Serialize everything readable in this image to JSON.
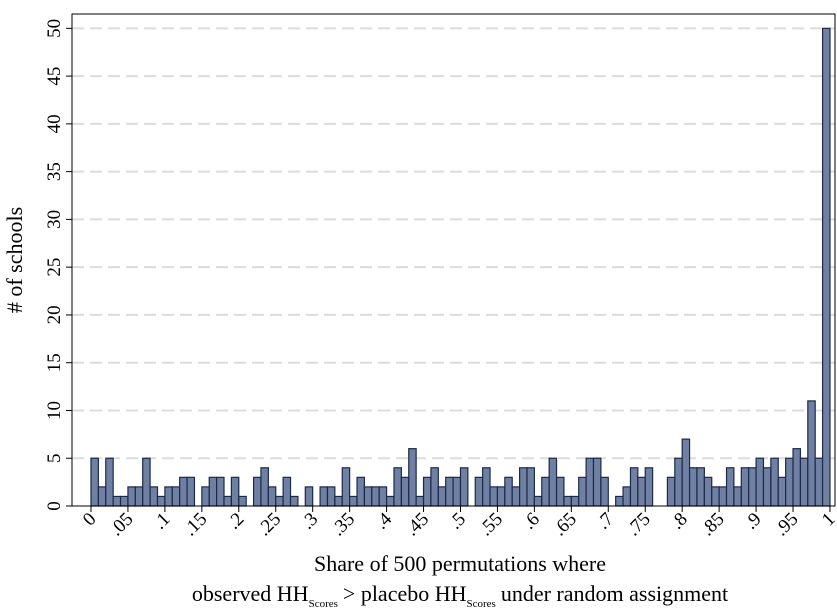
{
  "chart_data": {
    "type": "histogram",
    "ylabel": "# of schools",
    "xlabel": "Share of 500 permutations where",
    "xlabel_line2": [
      "observed HH",
      "Scores",
      "> placebo HH",
      "Scores",
      "under random assignment"
    ],
    "bins": [
      0,
      0.01,
      0.02,
      0.03,
      0.04,
      0.05,
      0.06,
      0.07,
      0.08,
      0.09,
      0.1,
      0.11,
      0.12,
      0.13,
      0.14,
      0.15,
      0.16,
      0.17,
      0.18,
      0.19,
      0.2,
      0.21,
      0.22,
      0.23,
      0.24,
      0.25,
      0.26,
      0.27,
      0.28,
      0.29,
      0.3,
      0.31,
      0.32,
      0.33,
      0.34,
      0.35,
      0.36,
      0.37,
      0.38,
      0.39,
      0.4,
      0.41,
      0.42,
      0.43,
      0.44,
      0.45,
      0.46,
      0.47,
      0.48,
      0.49,
      0.5,
      0.51,
      0.52,
      0.53,
      0.54,
      0.55,
      0.56,
      0.57,
      0.58,
      0.59,
      0.6,
      0.61,
      0.62,
      0.63,
      0.64,
      0.65,
      0.66,
      0.67,
      0.68,
      0.69,
      0.7,
      0.71,
      0.72,
      0.73,
      0.74,
      0.75,
      0.76,
      0.77,
      0.78,
      0.79,
      0.8,
      0.81,
      0.82,
      0.83,
      0.84,
      0.85,
      0.86,
      0.87,
      0.88,
      0.89,
      0.9,
      0.91,
      0.92,
      0.93,
      0.94,
      0.95,
      0.96,
      0.97,
      0.98,
      0.99,
      1
    ],
    "values": [
      5,
      2,
      5,
      1,
      1,
      2,
      2,
      5,
      2,
      1,
      2,
      2,
      3,
      3,
      0,
      2,
      3,
      3,
      1,
      3,
      1,
      0,
      3,
      4,
      2,
      1,
      3,
      1,
      0,
      2,
      0,
      2,
      2,
      1,
      4,
      1,
      3,
      2,
      2,
      2,
      1,
      4,
      3,
      6,
      1,
      3,
      4,
      2,
      3,
      3,
      4,
      0,
      3,
      4,
      2,
      2,
      3,
      2,
      4,
      4,
      1,
      3,
      5,
      3,
      1,
      1,
      3,
      5,
      5,
      3,
      0,
      1,
      2,
      4,
      3,
      4,
      0,
      0,
      3,
      5,
      7,
      4,
      4,
      3,
      2,
      2,
      4,
      2,
      4,
      4,
      5,
      4,
      5,
      3,
      5,
      6,
      5,
      11,
      5,
      50
    ],
    "color": "#6f80a3",
    "edgecolor": "#1b2a4a",
    "xlim": [
      -0.0257,
      1.0068
    ],
    "ylim": [
      0,
      51.5
    ],
    "xticks": [
      0,
      {
        "value": 0.05,
        "label": ".05"
      },
      {
        "value": 0.1,
        "label": ".1"
      },
      {
        "value": 0.15,
        "label": ".15"
      },
      {
        "value": 0.2,
        "label": ".2"
      },
      {
        "value": 0.25,
        "label": ".25"
      },
      {
        "value": 0.3,
        "label": ".3"
      },
      {
        "value": 0.35,
        "label": ".35"
      },
      {
        "value": 0.4,
        "label": ".4"
      },
      {
        "value": 0.45,
        "label": ".45"
      },
      {
        "value": 0.5,
        "label": ".5"
      },
      {
        "value": 0.55,
        "label": ".55"
      },
      {
        "value": 0.6,
        "label": ".6"
      },
      {
        "value": 0.65,
        "label": ".65"
      },
      {
        "value": 0.7,
        "label": ".7"
      },
      {
        "value": 0.75,
        "label": ".75"
      },
      {
        "value": 0.8,
        "label": ".8"
      },
      {
        "value": 0.85,
        "label": ".85"
      },
      {
        "value": 0.9,
        "label": ".9"
      },
      {
        "value": 0.95,
        "label": ".95"
      },
      1
    ],
    "yticks": [
      0,
      5,
      10,
      15,
      20,
      25,
      30,
      35,
      40,
      45,
      50
    ],
    "grid": true
  }
}
